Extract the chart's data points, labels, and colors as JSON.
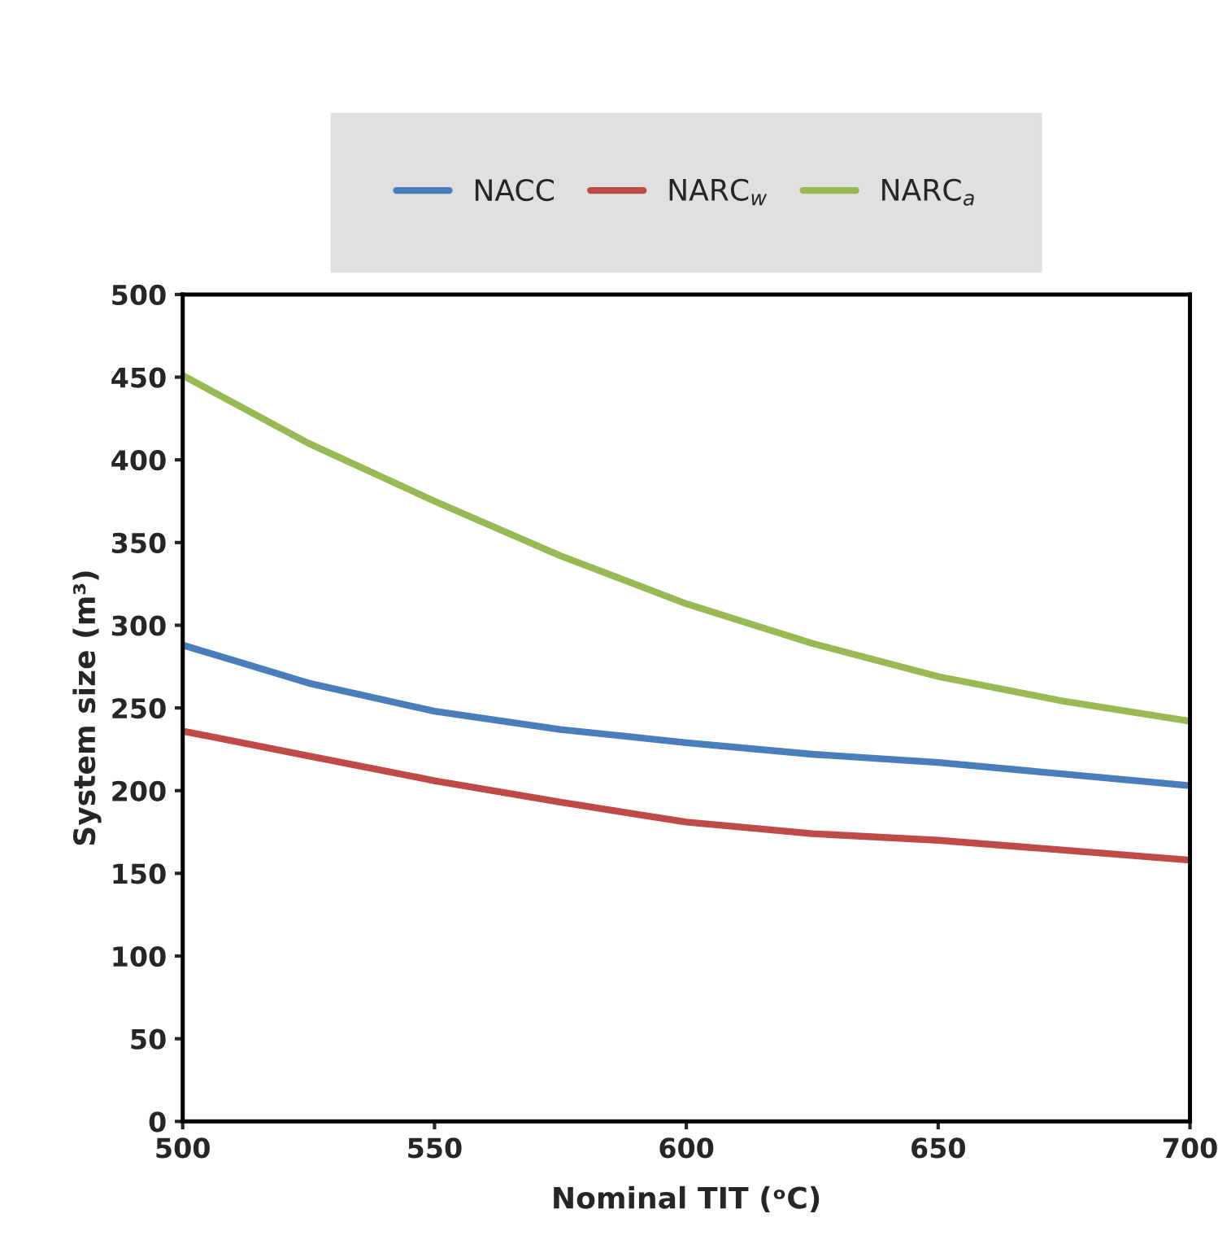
{
  "chart_data": {
    "type": "line",
    "xlabel": "Nominal TIT (ᵒC)",
    "ylabel": "System size (m³)",
    "x": [
      500,
      525,
      550,
      575,
      600,
      625,
      650,
      675,
      700
    ],
    "series": [
      {
        "name": "NACC",
        "color": "#4a7ebb",
        "values": [
          288,
          265,
          248,
          237,
          229,
          222,
          217,
          210,
          203
        ]
      },
      {
        "name": "NARC$_{w}$",
        "color": "#be4b48",
        "values": [
          236,
          221,
          206,
          193,
          181,
          174,
          170,
          164,
          158
        ]
      },
      {
        "name": "NARC$_{a}$",
        "color": "#98b954",
        "values": [
          451,
          410,
          375,
          342,
          313,
          289,
          269,
          254,
          242
        ]
      }
    ],
    "xlim": [
      500,
      700
    ],
    "xticks": [
      500,
      550,
      600,
      650,
      700
    ],
    "ylim": [
      0,
      500
    ],
    "yticks": [
      0,
      50,
      100,
      150,
      200,
      250,
      300,
      350,
      400,
      450,
      500
    ],
    "grid": false,
    "legend": "top",
    "marker": "none",
    "line_style": "solid"
  }
}
